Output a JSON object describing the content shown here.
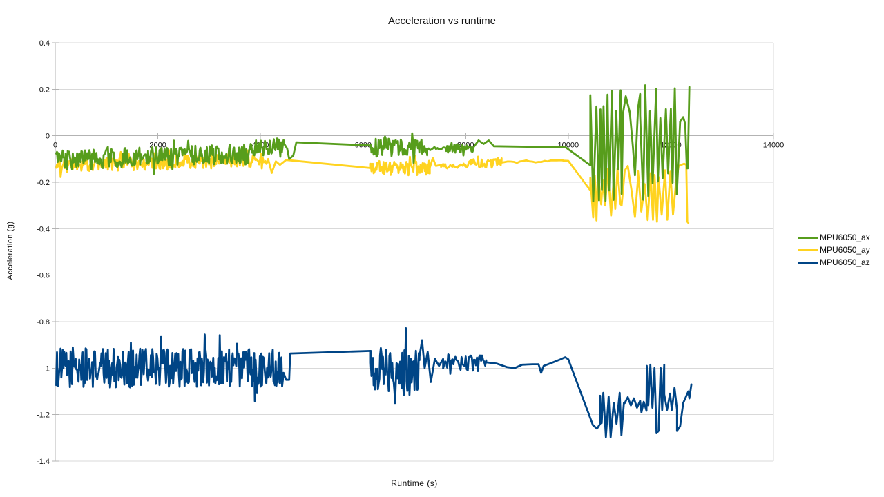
{
  "chart_data": {
    "type": "line",
    "title": "Acceleration vs runtime",
    "xlabel": "Runtime (s)",
    "ylabel": "Acceleration (g)",
    "xlim": [
      0,
      14000
    ],
    "ylim": [
      -1.4,
      0.4
    ],
    "x_ticks": [
      0,
      2000,
      4000,
      6000,
      8000,
      10000,
      12000,
      14000
    ],
    "y_ticks": [
      0.4,
      0.2,
      0,
      -0.2,
      -0.4,
      -0.6,
      -0.8,
      -1,
      -1.2,
      -1.4
    ],
    "y_tick_labels": [
      "0.4",
      "0.2",
      "0",
      "-0.2",
      "-0.4",
      "-0.6",
      "-0.8",
      "-1",
      "-1.2",
      "-1.4"
    ],
    "grid": "horizontal-major",
    "legend_position": "right-middle",
    "axis_color": "#b3b3b3",
    "grid_color": "#d9d9d9",
    "background": "#ffffff",
    "series": [
      {
        "name": "MPU6050_az",
        "color": "#004586",
        "segments": [
          {
            "mode": "noise",
            "x0": 20,
            "x1": 4450,
            "y0": -1.0,
            "y1": -0.995,
            "amp": 0.085,
            "step": 14
          },
          {
            "mode": "path",
            "points": [
              [
                4450,
                -1.02
              ],
              [
                4500,
                -1.05
              ],
              [
                4560,
                -1.05
              ],
              [
                4580,
                -0.937
              ]
            ]
          },
          {
            "mode": "path",
            "points": [
              [
                4580,
                -0.937
              ],
              [
                6150,
                -0.926
              ]
            ]
          },
          {
            "mode": "noise",
            "x0": 6150,
            "x1": 7100,
            "y0": -1.0,
            "y1": -1.0,
            "amp": 0.1,
            "step": 14
          },
          {
            "mode": "path",
            "points": [
              [
                7100,
                -0.95
              ],
              [
                7150,
                -0.88
              ],
              [
                7200,
                -1.0
              ],
              [
                7260,
                -0.93
              ],
              [
                7320,
                -1.06
              ],
              [
                7400,
                -0.96
              ],
              [
                7480,
                -0.99
              ],
              [
                7560,
                -0.96
              ]
            ]
          },
          {
            "mode": "noise",
            "x0": 7560,
            "x1": 8400,
            "y0": -0.97,
            "y1": -0.98,
            "amp": 0.035,
            "step": 20
          },
          {
            "mode": "path",
            "points": [
              [
                8400,
                -0.975
              ],
              [
                8600,
                -0.98
              ],
              [
                8800,
                -0.995
              ],
              [
                8950,
                -1.0
              ],
              [
                9100,
                -0.985
              ],
              [
                9300,
                -0.983
              ],
              [
                9420,
                -0.983
              ],
              [
                9470,
                -1.02
              ],
              [
                9520,
                -0.99
              ],
              [
                9700,
                -0.975
              ],
              [
                9850,
                -0.962
              ],
              [
                9940,
                -0.953
              ],
              [
                10000,
                -0.962
              ]
            ]
          },
          {
            "mode": "path",
            "points": [
              [
                10000,
                -0.962
              ],
              [
                10480,
                -1.245
              ],
              [
                10560,
                -1.26
              ],
              [
                10620,
                -1.24
              ]
            ]
          },
          {
            "mode": "osc",
            "x0": 10620,
            "x1": 11100,
            "lo": -1.3,
            "hi": -1.1,
            "step": 42
          },
          {
            "mode": "path",
            "points": [
              [
                11100,
                -1.15
              ],
              [
                11160,
                -1.125
              ],
              [
                11220,
                -1.16
              ],
              [
                11280,
                -1.13
              ],
              [
                11340,
                -1.17
              ],
              [
                11400,
                -1.14
              ]
            ]
          },
          {
            "mode": "osc",
            "x0": 11400,
            "x1": 11530,
            "lo": -1.2,
            "hi": -1.14,
            "step": 40
          },
          {
            "mode": "path",
            "points": [
              [
                11530,
                -0.99
              ],
              [
                11560,
                -1.16
              ],
              [
                11600,
                -0.985
              ],
              [
                11640,
                -1.17
              ],
              [
                11680,
                -1.0
              ],
              [
                11720,
                -1.28
              ],
              [
                11760,
                -1.27
              ],
              [
                11800,
                -1.0
              ],
              [
                11830,
                -1.18
              ],
              [
                11870,
                -0.985
              ]
            ]
          },
          {
            "mode": "osc",
            "x0": 11870,
            "x1": 12120,
            "lo": -1.22,
            "hi": -1.07,
            "step": 40
          },
          {
            "mode": "path",
            "points": [
              [
                12120,
                -1.27
              ],
              [
                12180,
                -1.25
              ],
              [
                12240,
                -1.15
              ],
              [
                12300,
                -1.12
              ],
              [
                12340,
                -1.1
              ],
              [
                12360,
                -1.13
              ],
              [
                12400,
                -1.07
              ]
            ]
          }
        ]
      },
      {
        "name": "MPU6050_ay",
        "color": "#FFD320",
        "segments": [
          {
            "mode": "noise",
            "x0": 20,
            "x1": 3850,
            "y0": -0.128,
            "y1": -0.105,
            "amp": 0.03,
            "step": 14
          },
          {
            "mode": "noise",
            "x0": 3850,
            "x1": 4150,
            "y0": -0.1,
            "y1": -0.1,
            "amp": 0.025,
            "step": 18
          },
          {
            "mode": "path",
            "points": [
              [
                4150,
                -0.1
              ],
              [
                4220,
                -0.16
              ],
              [
                4300,
                -0.11
              ],
              [
                4380,
                -0.125
              ],
              [
                4500,
                -0.104
              ]
            ]
          },
          {
            "mode": "path",
            "points": [
              [
                4500,
                -0.104
              ],
              [
                6150,
                -0.139
              ]
            ]
          },
          {
            "mode": "noise",
            "x0": 6150,
            "x1": 7300,
            "y0": -0.138,
            "y1": -0.138,
            "amp": 0.032,
            "step": 14
          },
          {
            "mode": "path",
            "points": [
              [
                7300,
                -0.138
              ],
              [
                7360,
                -0.095
              ],
              [
                7420,
                -0.13
              ],
              [
                7520,
                -0.125
              ]
            ]
          },
          {
            "mode": "noise",
            "x0": 7520,
            "x1": 8100,
            "y0": -0.13,
            "y1": -0.125,
            "amp": 0.012,
            "step": 20
          },
          {
            "mode": "noise",
            "x0": 8100,
            "x1": 8700,
            "y0": -0.12,
            "y1": -0.115,
            "amp": 0.022,
            "step": 18
          },
          {
            "mode": "noise",
            "x0": 8700,
            "x1": 9900,
            "y0": -0.115,
            "y1": -0.107,
            "amp": 0.004,
            "step": 60
          },
          {
            "mode": "path",
            "points": [
              [
                9900,
                -0.107
              ],
              [
                10000,
                -0.108
              ],
              [
                10430,
                -0.235
              ]
            ]
          },
          {
            "mode": "osc",
            "x0": 10430,
            "x1": 11040,
            "lo": -0.375,
            "hi": -0.13,
            "step": 44
          },
          {
            "mode": "path",
            "points": [
              [
                11040,
                -0.3
              ],
              [
                11100,
                -0.15
              ],
              [
                11160,
                -0.13
              ],
              [
                11230,
                -0.23
              ],
              [
                11300,
                -0.35
              ],
              [
                11360,
                -0.18
              ]
            ]
          },
          {
            "mode": "osc",
            "x0": 11360,
            "x1": 12150,
            "lo": -0.37,
            "hi": -0.14,
            "step": 46
          },
          {
            "mode": "path",
            "points": [
              [
                12150,
                -0.13
              ],
              [
                12200,
                -0.125
              ],
              [
                12260,
                -0.12
              ],
              [
                12300,
                -0.125
              ],
              [
                12320,
                -0.37
              ],
              [
                12340,
                -0.375
              ]
            ]
          }
        ]
      },
      {
        "name": "MPU6050_ax",
        "color": "#579D1C",
        "segments": [
          {
            "mode": "noise",
            "x0": 20,
            "x1": 3850,
            "y0": -0.105,
            "y1": -0.075,
            "amp": 0.042,
            "step": 14
          },
          {
            "mode": "noise",
            "x0": 3850,
            "x1": 4450,
            "y0": -0.055,
            "y1": -0.04,
            "amp": 0.035,
            "step": 16
          },
          {
            "mode": "path",
            "points": [
              [
                4450,
                -0.03
              ],
              [
                4520,
                -0.055
              ],
              [
                4560,
                -0.1
              ],
              [
                4640,
                -0.085
              ],
              [
                4700,
                -0.028
              ]
            ]
          },
          {
            "mode": "path",
            "points": [
              [
                4700,
                -0.028
              ],
              [
                6150,
                -0.042
              ]
            ]
          },
          {
            "mode": "noise",
            "x0": 6150,
            "x1": 7250,
            "y0": -0.05,
            "y1": -0.05,
            "amp": 0.04,
            "step": 14
          },
          {
            "mode": "noise",
            "x0": 7250,
            "x1": 7620,
            "y0": -0.055,
            "y1": -0.055,
            "amp": 0.006,
            "step": 30
          },
          {
            "mode": "noise",
            "x0": 7620,
            "x1": 8150,
            "y0": -0.06,
            "y1": -0.05,
            "amp": 0.02,
            "step": 18
          },
          {
            "mode": "path",
            "points": [
              [
                8150,
                -0.05
              ],
              [
                8250,
                -0.02
              ],
              [
                8350,
                -0.035
              ],
              [
                8450,
                -0.02
              ],
              [
                8550,
                -0.045
              ]
            ]
          },
          {
            "mode": "path",
            "points": [
              [
                8550,
                -0.045
              ],
              [
                9950,
                -0.05
              ]
            ]
          },
          {
            "mode": "path",
            "points": [
              [
                9950,
                -0.05
              ],
              [
                10430,
                -0.127
              ]
            ]
          },
          {
            "mode": "osc",
            "x0": 10430,
            "x1": 11040,
            "lo": -0.32,
            "hi": 0.235,
            "step": 44
          },
          {
            "mode": "path",
            "points": [
              [
                11040,
                -0.25
              ],
              [
                11070,
                0.1
              ],
              [
                11120,
                0.17
              ],
              [
                11200,
                0.1
              ],
              [
                11260,
                -0.05
              ],
              [
                11300,
                -0.17
              ],
              [
                11360,
                0.12
              ],
              [
                11400,
                0.18
              ]
            ]
          },
          {
            "mode": "osc",
            "x0": 11400,
            "x1": 12140,
            "lo": -0.3,
            "hi": 0.23,
            "step": 46
          },
          {
            "mode": "path",
            "points": [
              [
                12140,
                -0.14
              ],
              [
                12180,
                0.06
              ],
              [
                12240,
                0.08
              ],
              [
                12280,
                0.05
              ],
              [
                12310,
                -0.14
              ],
              [
                12330,
                -0.14
              ],
              [
                12360,
                0.21
              ]
            ]
          }
        ]
      }
    ]
  }
}
